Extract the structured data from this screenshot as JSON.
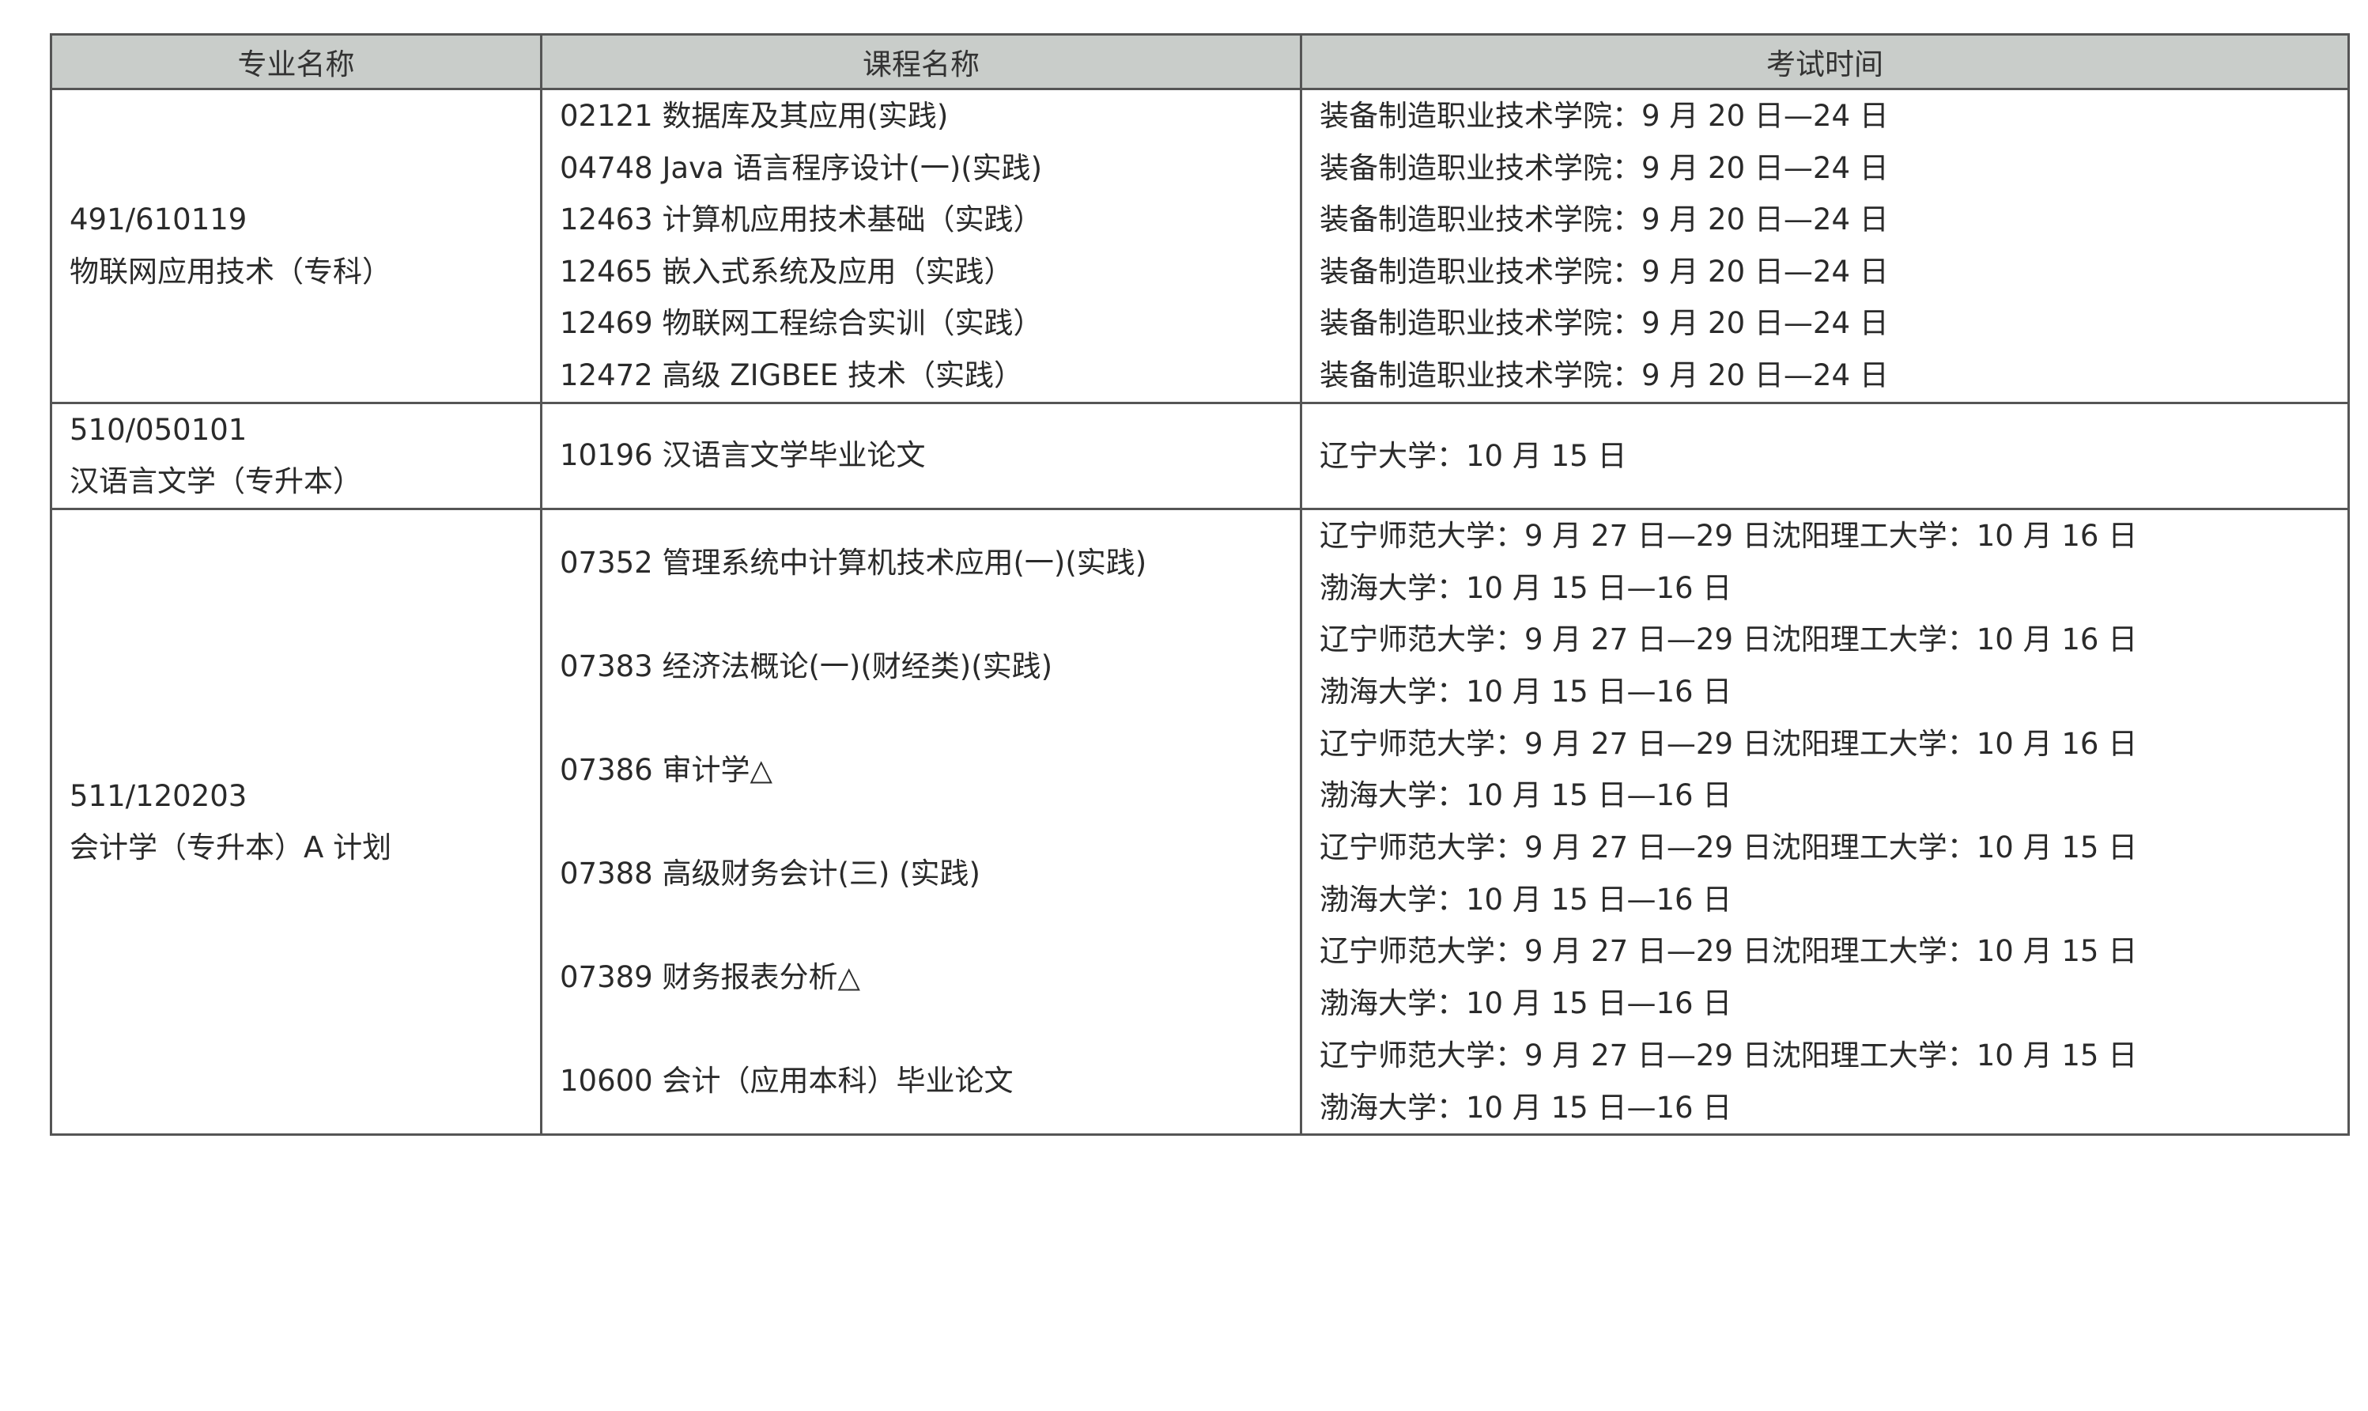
{
  "headers": [
    "专业名称",
    "课程名称",
    "考试时间"
  ],
  "groups": [
    {
      "major_code": "491/610119",
      "major_name": "物联网应用技术（专科）",
      "courses": [
        {
          "course": "02121  数据库及其应用(实践)",
          "time": [
            "装备制造职业技术学院：9 月 20 日—24 日"
          ]
        },
        {
          "course": "04748 Java 语言程序设计(一)(实践)",
          "time": [
            "装备制造职业技术学院：9 月 20 日—24 日"
          ]
        },
        {
          "course": "12463  计算机应用技术基础（实践）",
          "time": [
            "装备制造职业技术学院：9 月 20 日—24 日"
          ]
        },
        {
          "course": "12465  嵌入式系统及应用（实践）",
          "time": [
            "装备制造职业技术学院：9 月 20 日—24 日"
          ]
        },
        {
          "course": "12469  物联网工程综合实训（实践）",
          "time": [
            "装备制造职业技术学院：9 月 20 日—24 日"
          ]
        },
        {
          "course": "12472  高级 ZIGBEE 技术（实践）",
          "time": [
            "装备制造职业技术学院：9 月 20 日—24 日"
          ]
        }
      ]
    },
    {
      "major_code": "510/050101",
      "major_name": "汉语言文学（专升本）",
      "courses": [
        {
          "course": "10196  汉语言文学毕业论文",
          "time": [
            "辽宁大学：10 月 15 日"
          ]
        }
      ]
    },
    {
      "major_code": "511/120203",
      "major_name": "会计学（专升本）A 计划",
      "courses": [
        {
          "course": "07352  管理系统中计算机技术应用(一)(实践)",
          "time": [
            "辽宁师范大学：9 月 27 日—29 日沈阳理工大学：10 月 16 日",
            "渤海大学：10 月 15 日—16 日"
          ]
        },
        {
          "course": "07383  经济法概论(一)(财经类)(实践)",
          "time": [
            "辽宁师范大学：9 月 27 日—29 日沈阳理工大学：10 月 16 日",
            "渤海大学：10 月 15 日—16 日"
          ]
        },
        {
          "course": "07386  审计学△",
          "time": [
            "辽宁师范大学：9 月 27 日—29 日沈阳理工大学：10 月 16 日",
            "渤海大学：10 月 15 日—16 日"
          ]
        },
        {
          "course": "07388  高级财务会计(三) (实践)",
          "time": [
            "辽宁师范大学：9 月 27 日—29 日沈阳理工大学：10 月 15 日",
            "渤海大学：10 月 15 日—16 日"
          ]
        },
        {
          "course": "07389  财务报表分析△",
          "time": [
            "辽宁师范大学：9 月 27 日—29 日沈阳理工大学：10 月 15 日",
            "渤海大学：10 月 15 日—16 日"
          ]
        },
        {
          "course": "10600  会计（应用本科）毕业论文",
          "time": [
            "辽宁师范大学：9 月 27 日—29 日沈阳理工大学：10 月 15 日",
            "渤海大学：10 月 15 日—16 日"
          ]
        }
      ]
    }
  ]
}
